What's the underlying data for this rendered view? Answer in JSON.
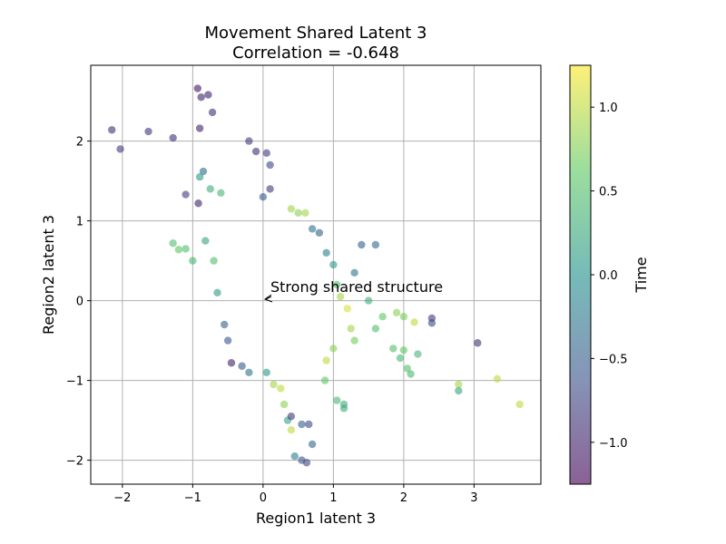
{
  "chart_data": {
    "type": "scatter",
    "title": "Movement Shared Latent 3",
    "subtitle": "Correlation = -0.648",
    "xlabel": "Region1 latent 3",
    "ylabel": "Region2 latent 3",
    "xlim": [
      -2.45,
      3.95
    ],
    "ylim": [
      -2.3,
      2.95
    ],
    "xticks": [
      -2,
      -1,
      0,
      1,
      2,
      3
    ],
    "yticks": [
      -2,
      -1,
      0,
      1,
      2
    ],
    "grid": true,
    "colormap": "viridis",
    "point_alpha": 0.6,
    "colorbar": {
      "label": "Time",
      "range": [
        -1.25,
        1.25
      ],
      "ticks": [
        -1.0,
        -0.5,
        0.0,
        0.5,
        1.0
      ]
    },
    "annotation": {
      "text": "Strong shared structure",
      "x": 0.0,
      "y": 0.0
    },
    "points": [
      [
        -2.15,
        2.14,
        -0.9
      ],
      [
        -2.03,
        1.9,
        -0.8
      ],
      [
        -1.63,
        2.12,
        -0.85
      ],
      [
        -1.28,
        2.04,
        -0.9
      ],
      [
        -1.1,
        1.33,
        -0.8
      ],
      [
        -0.93,
        2.66,
        -1.1
      ],
      [
        -0.88,
        2.55,
        -1.0
      ],
      [
        -0.78,
        2.58,
        -1.0
      ],
      [
        -0.72,
        2.36,
        -0.9
      ],
      [
        -0.9,
        2.16,
        -1.0
      ],
      [
        -0.92,
        1.22,
        -1.0
      ],
      [
        -0.2,
        2.0,
        -0.8
      ],
      [
        -0.1,
        1.87,
        -0.9
      ],
      [
        0.05,
        1.85,
        -0.8
      ],
      [
        0.1,
        1.7,
        -0.7
      ],
      [
        0.1,
        1.4,
        -0.8
      ],
      [
        0.0,
        1.3,
        -0.6
      ],
      [
        0.4,
        1.15,
        0.9
      ],
      [
        0.5,
        1.1,
        0.8
      ],
      [
        0.6,
        1.1,
        0.9
      ],
      [
        -1.28,
        0.72,
        0.5
      ],
      [
        -1.2,
        0.64,
        0.6
      ],
      [
        -1.1,
        0.65,
        0.5
      ],
      [
        -1.0,
        0.5,
        0.4
      ],
      [
        1.4,
        0.7,
        -0.5
      ],
      [
        1.6,
        0.7,
        -0.4
      ],
      [
        1.3,
        0.35,
        -0.3
      ],
      [
        1.5,
        0.0,
        0.3
      ],
      [
        1.7,
        -0.2,
        0.6
      ],
      [
        1.9,
        -0.15,
        0.8
      ],
      [
        2.0,
        -0.2,
        0.7
      ],
      [
        2.15,
        -0.27,
        1.0
      ],
      [
        1.85,
        -0.6,
        0.5
      ],
      [
        1.95,
        -0.72,
        0.4
      ],
      [
        2.0,
        -0.62,
        0.6
      ],
      [
        2.05,
        -0.85,
        0.5
      ],
      [
        2.1,
        -0.92,
        0.4
      ],
      [
        2.2,
        -0.67,
        0.4
      ],
      [
        2.4,
        -0.22,
        -0.8
      ],
      [
        2.4,
        -0.28,
        -0.7
      ],
      [
        1.6,
        -0.35,
        0.5
      ],
      [
        3.05,
        -0.53,
        -0.9
      ],
      [
        2.78,
        -1.05,
        0.9
      ],
      [
        2.78,
        -1.13,
        0.2
      ],
      [
        3.33,
        -0.98,
        1.0
      ],
      [
        3.65,
        -1.3,
        1.0
      ],
      [
        1.05,
        -1.25,
        0.4
      ],
      [
        1.15,
        -1.3,
        0.3
      ],
      [
        1.15,
        -1.35,
        0.3
      ],
      [
        0.88,
        -1.0,
        0.6
      ],
      [
        0.7,
        -1.8,
        -0.4
      ],
      [
        0.62,
        -2.03,
        -0.7
      ],
      [
        0.55,
        -2.0,
        -0.6
      ],
      [
        0.4,
        -1.62,
        1.0
      ],
      [
        0.45,
        -1.95,
        -0.2
      ],
      [
        -0.85,
        1.62,
        -0.4
      ],
      [
        -0.9,
        1.55,
        0.1
      ],
      [
        -0.75,
        1.4,
        0.3
      ],
      [
        -0.6,
        1.35,
        0.4
      ],
      [
        -0.82,
        0.75,
        0.2
      ],
      [
        -0.7,
        0.5,
        0.5
      ],
      [
        -0.65,
        0.1,
        0.1
      ],
      [
        -0.55,
        -0.3,
        -0.5
      ],
      [
        -0.5,
        -0.5,
        -0.6
      ],
      [
        -0.45,
        -0.78,
        -1.0
      ],
      [
        -0.3,
        -0.82,
        -0.6
      ],
      [
        -0.2,
        -0.9,
        -0.3
      ],
      [
        0.05,
        -0.9,
        0.1
      ],
      [
        0.15,
        -1.05,
        0.9
      ],
      [
        0.25,
        -1.1,
        1.0
      ],
      [
        0.3,
        -1.3,
        0.8
      ],
      [
        0.35,
        -1.5,
        0.2
      ],
      [
        0.4,
        -1.45,
        -0.8
      ],
      [
        0.55,
        -1.55,
        -0.5
      ],
      [
        0.65,
        -1.55,
        -0.7
      ],
      [
        0.7,
        0.9,
        -0.3
      ],
      [
        0.8,
        0.85,
        -0.5
      ],
      [
        0.9,
        0.6,
        -0.2
      ],
      [
        1.0,
        0.45,
        0.1
      ],
      [
        1.05,
        0.2,
        0.5
      ],
      [
        1.1,
        0.05,
        0.9
      ],
      [
        1.2,
        -0.1,
        1.1
      ],
      [
        1.25,
        -0.35,
        0.9
      ],
      [
        1.3,
        -0.5,
        0.7
      ],
      [
        1.0,
        -0.6,
        0.8
      ],
      [
        0.9,
        -0.75,
        1.0
      ]
    ]
  }
}
